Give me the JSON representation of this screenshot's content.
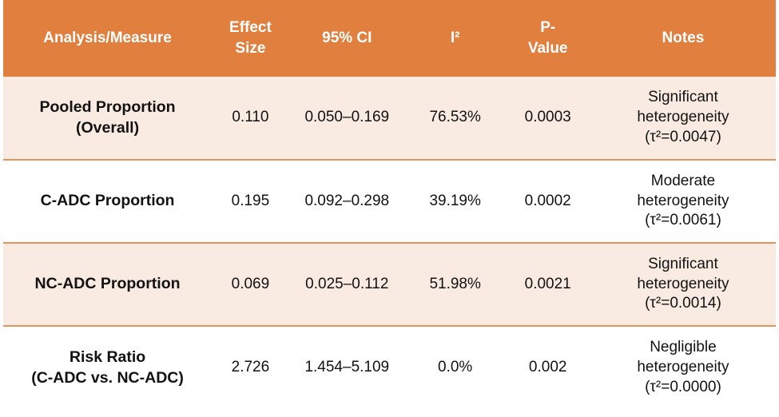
{
  "colors": {
    "header_bg": "#E07F3E",
    "header_text": "#FFFFFF",
    "banded_row_bg": "#FAEBE2",
    "plain_row_bg": "#FFFFFF",
    "row_border": "#E2945E",
    "body_text": "#121212"
  },
  "chart_data": {
    "type": "table",
    "title": "",
    "columns": [
      "Analysis/Measure",
      "Effect\nSize",
      "95% CI",
      "I²",
      "P-\nValue",
      "Notes"
    ],
    "rows": [
      {
        "measure": "Pooled Proportion\n(Overall)",
        "effect_size": "0.110",
        "ci": "0.050–0.169",
        "i2": "76.53%",
        "p_value": "0.0003",
        "notes": "Significant\nheterogeneity\n(τ²=0.0047)"
      },
      {
        "measure": "C-ADC Proportion",
        "effect_size": "0.195",
        "ci": "0.092–0.298",
        "i2": "39.19%",
        "p_value": "0.0002",
        "notes": "Moderate\nheterogeneity\n(τ²=0.0061)"
      },
      {
        "measure": "NC-ADC Proportion",
        "effect_size": "0.069",
        "ci": "0.025–0.112",
        "i2": "51.98%",
        "p_value": "0.0021",
        "notes": "Significant\nheterogeneity\n(τ²=0.0014)"
      },
      {
        "measure": "Risk Ratio\n(C-ADC vs. NC-ADC)",
        "effect_size": "2.726",
        "ci": "1.454–5.109",
        "i2": "0.0%",
        "p_value": "0.002",
        "notes": "Negligible\nheterogeneity\n(τ²=0.0000)"
      }
    ]
  }
}
